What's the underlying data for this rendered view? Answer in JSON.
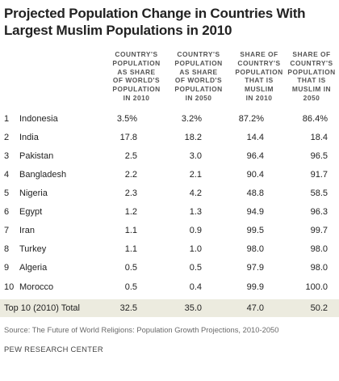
{
  "title_line1": "Projected Population Change in Countries With",
  "title_line2": "Largest Muslim Populations in 2010",
  "headers": [
    [
      "COUNTRY'S",
      "POPULATION",
      "AS SHARE",
      "OF WORLD'S",
      "POPULATION",
      "IN 2010"
    ],
    [
      "COUNTRY'S",
      "POPULATION",
      "AS SHARE",
      "OF WORLD'S",
      "POPULATION",
      "IN 2050"
    ],
    [
      "SHARE OF",
      "COUNTRY'S",
      "POPULATION",
      "THAT IS",
      "MUSLIM",
      "IN 2010"
    ],
    [
      "SHARE OF",
      "COUNTRY'S",
      "POPULATION",
      "THAT IS",
      "MUSLIM IN",
      "2050"
    ]
  ],
  "rows": [
    {
      "rank": "1",
      "country": "Indonesia",
      "v1": "3.5%",
      "v2": "3.2%",
      "v3": "87.2%",
      "v4": "86.4%"
    },
    {
      "rank": "2",
      "country": "India",
      "v1": "17.8",
      "v2": "18.2",
      "v3": "14.4",
      "v4": "18.4"
    },
    {
      "rank": "3",
      "country": "Pakistan",
      "v1": "2.5",
      "v2": "3.0",
      "v3": "96.4",
      "v4": "96.5"
    },
    {
      "rank": "4",
      "country": "Bangladesh",
      "v1": "2.2",
      "v2": "2.1",
      "v3": "90.4",
      "v4": "91.7"
    },
    {
      "rank": "5",
      "country": "Nigeria",
      "v1": "2.3",
      "v2": "4.2",
      "v3": "48.8",
      "v4": "58.5"
    },
    {
      "rank": "6",
      "country": "Egypt",
      "v1": "1.2",
      "v2": "1.3",
      "v3": "94.9",
      "v4": "96.3"
    },
    {
      "rank": "7",
      "country": "Iran",
      "v1": "1.1",
      "v2": "0.9",
      "v3": "99.5",
      "v4": "99.7"
    },
    {
      "rank": "8",
      "country": "Turkey",
      "v1": "1.1",
      "v2": "1.0",
      "v3": "98.0",
      "v4": "98.0"
    },
    {
      "rank": "9",
      "country": "Algeria",
      "v1": "0.5",
      "v2": "0.5",
      "v3": "97.9",
      "v4": "98.0"
    },
    {
      "rank": "10",
      "country": "Morocco",
      "v1": "0.5",
      "v2": "0.4",
      "v3": "99.9",
      "v4": "100.0"
    }
  ],
  "total": {
    "label": "Top 10 (2010) Total",
    "v1": "32.5",
    "v2": "35.0",
    "v3": "47.0",
    "v4": "50.2"
  },
  "source": "Source: The Future of World Religions: Population Growth Projections, 2010-2050",
  "org": "PEW RESEARCH CENTER",
  "colors": {
    "total_band": "#ecebdf",
    "text": "#222222",
    "header": "#555555",
    "source": "#6a6a6a"
  }
}
